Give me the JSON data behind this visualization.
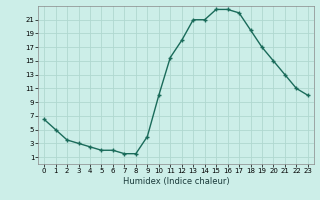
{
  "x": [
    0,
    1,
    2,
    3,
    4,
    5,
    6,
    7,
    8,
    9,
    10,
    11,
    12,
    13,
    14,
    15,
    16,
    17,
    18,
    19,
    20,
    21,
    22,
    23
  ],
  "y": [
    6.5,
    5.0,
    3.5,
    3.0,
    2.5,
    2.0,
    2.0,
    1.5,
    1.5,
    4.0,
    10.0,
    15.5,
    18.0,
    21.0,
    21.0,
    22.5,
    22.5,
    22.0,
    19.5,
    17.0,
    15.0,
    13.0,
    11.0,
    10.0
  ],
  "line_color": "#1a6b5a",
  "marker": "+",
  "markersize": 3.5,
  "markeredgewidth": 1.0,
  "linewidth": 1.0,
  "linestyle": "-",
  "xlabel": "Humidex (Indice chaleur)",
  "xlim": [
    -0.5,
    23.5
  ],
  "ylim": [
    0,
    23
  ],
  "yticks": [
    1,
    3,
    5,
    7,
    9,
    11,
    13,
    15,
    17,
    19,
    21
  ],
  "xticks": [
    0,
    1,
    2,
    3,
    4,
    5,
    6,
    7,
    8,
    9,
    10,
    11,
    12,
    13,
    14,
    15,
    16,
    17,
    18,
    19,
    20,
    21,
    22,
    23
  ],
  "bg_color": "#cceee8",
  "grid_color": "#b0d8d0",
  "tick_labelsize": 5.0,
  "xlabel_fontsize": 6.0
}
